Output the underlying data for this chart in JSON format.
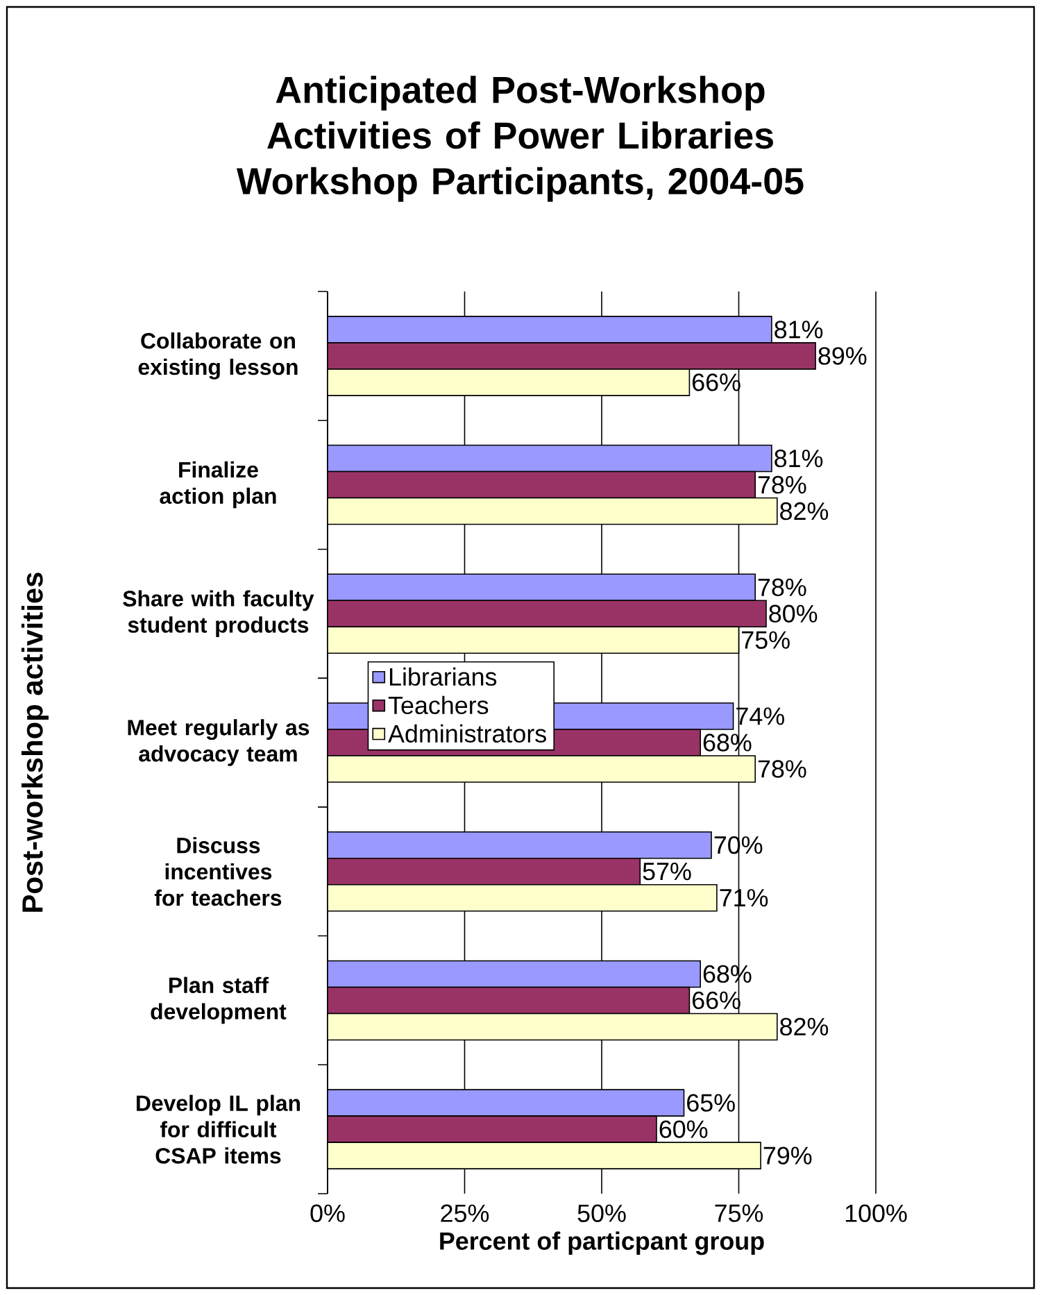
{
  "chart_data": {
    "type": "bar",
    "orientation": "horizontal",
    "title": "Anticipated Post-Workshop Activities of Power Libraries Workshop Participants, 2004-05",
    "xlabel": "Percent of particpant group",
    "ylabel": "Post-workshop activities",
    "categories": [
      "Collaborate on existing lesson",
      "Finalize action plan",
      "Share with faculty student products",
      "Meet regularly as advocacy team",
      "Discuss incentives for teachers",
      "Plan staff development",
      "Develop IL plan for difficult CSAP items"
    ],
    "series": [
      {
        "name": "Librarians",
        "color": "#9999ff",
        "values": [
          81,
          81,
          78,
          74,
          70,
          68,
          65
        ],
        "value_labels": [
          "81%",
          "81%",
          "78%",
          "74%",
          "70%",
          "68%",
          "65%"
        ]
      },
      {
        "name": "Teachers",
        "color": "#993366",
        "values": [
          89,
          78,
          80,
          68,
          57,
          66,
          60
        ],
        "value_labels": [
          "89%",
          "78%",
          "80%",
          "68%",
          "57%",
          "66%",
          "60%"
        ]
      },
      {
        "name": "Administrators",
        "color": "#ffffcc",
        "values": [
          66,
          82,
          75,
          78,
          71,
          82,
          79
        ],
        "value_labels": [
          "66%",
          "82%",
          "75%",
          "78%",
          "71%",
          "82%",
          "79%"
        ]
      }
    ],
    "xlim": [
      0,
      100
    ],
    "xticks": [
      {
        "value": 0,
        "label": "0%"
      },
      {
        "value": 25,
        "label": "25%"
      },
      {
        "value": 50,
        "label": "50%"
      },
      {
        "value": 75,
        "label": "75%"
      },
      {
        "value": 100,
        "label": "100%"
      }
    ],
    "grid": "x",
    "legend": "left"
  }
}
